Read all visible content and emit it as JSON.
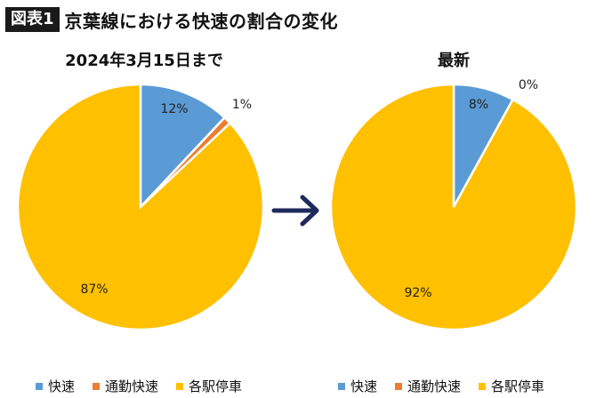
{
  "header": {
    "badge": "図表1",
    "title": "京葉線における快速の割合の変化"
  },
  "arrow_icon": "right-arrow-icon",
  "chart_data": [
    {
      "type": "pie",
      "title": "2024年3月15日まで",
      "categories": [
        "快速",
        "通勤快速",
        "各駅停車"
      ],
      "values": [
        12,
        1,
        87
      ],
      "labels": [
        "12%",
        "1%",
        "87%"
      ],
      "colors": [
        "#5B9BD5",
        "#ED7D31",
        "#FFC000"
      ],
      "legend_position": "bottom"
    },
    {
      "type": "pie",
      "title": "最新",
      "categories": [
        "快速",
        "通勤快速",
        "各駅停車"
      ],
      "values": [
        8,
        0,
        92
      ],
      "labels": [
        "8%",
        "0%",
        "92%"
      ],
      "colors": [
        "#5B9BD5",
        "#ED7D31",
        "#FFC000"
      ],
      "legend_position": "bottom"
    }
  ]
}
